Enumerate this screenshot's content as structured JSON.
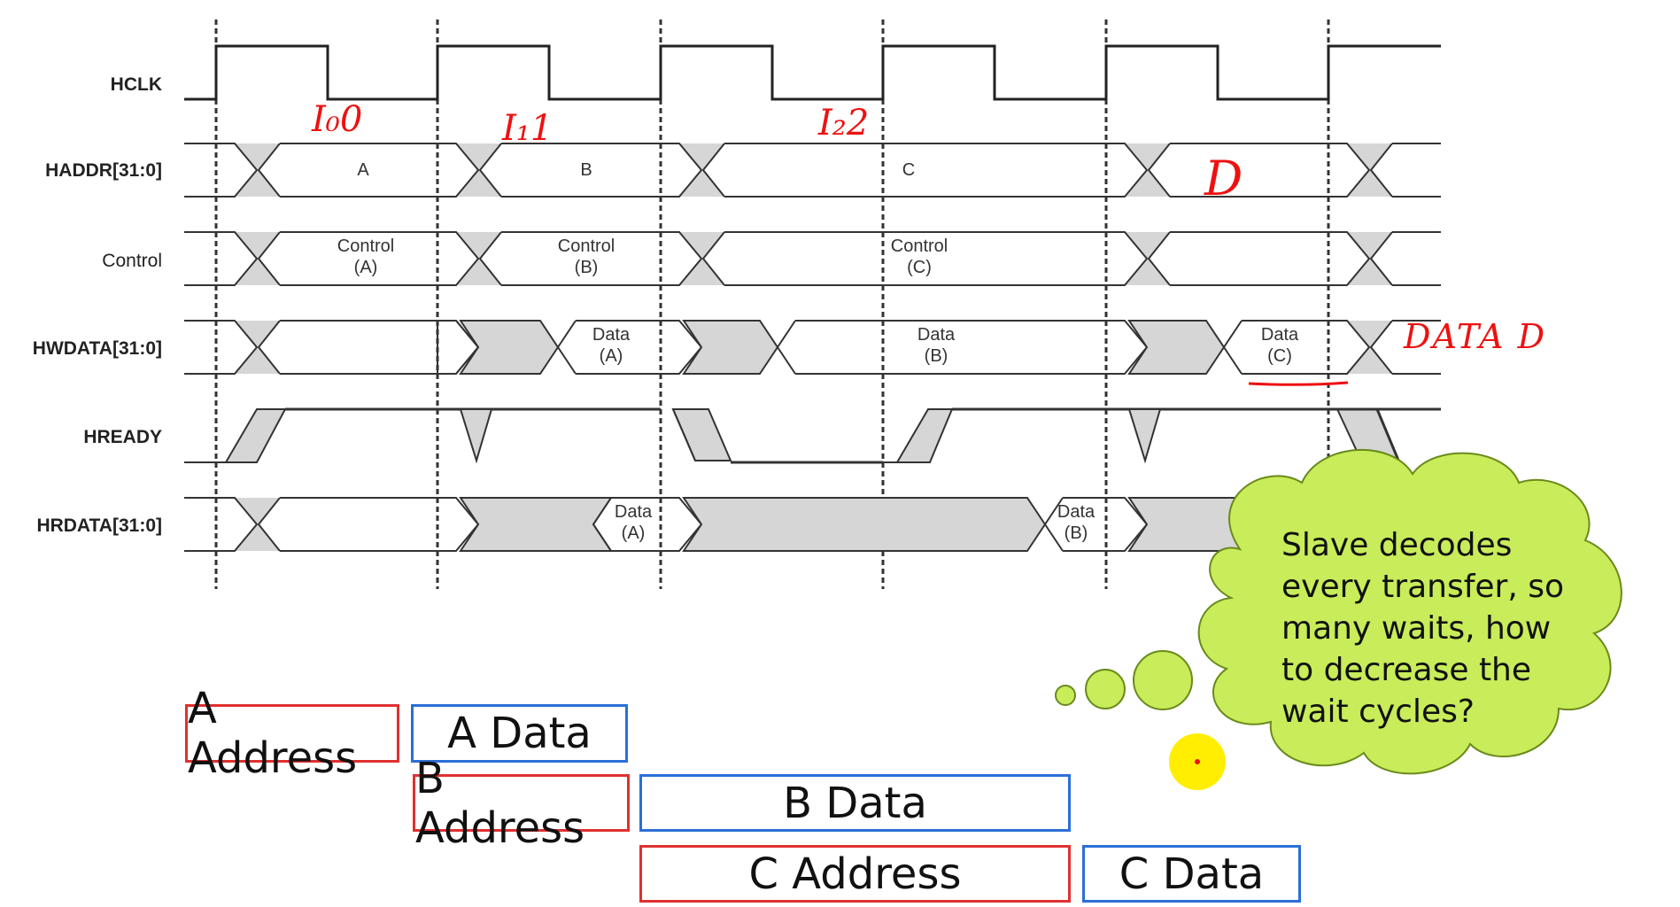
{
  "signals": {
    "hclk": "HCLK",
    "haddr": "HADDR[31:0]",
    "control": "Control",
    "hwdata": "HWDATA[31:0]",
    "hready": "HREADY",
    "hrdata": "HRDATA[31:0]"
  },
  "bus_values": {
    "haddr_a": "A",
    "haddr_b": "B",
    "haddr_c": "C",
    "control_a_1": "Control",
    "control_a_2": "(A)",
    "control_b_1": "Control",
    "control_b_2": "(B)",
    "control_c_1": "Control",
    "control_c_2": "(C)",
    "hwdata_a_1": "Data",
    "hwdata_a_2": "(A)",
    "hwdata_b_1": "Data",
    "hwdata_b_2": "(B)",
    "hwdata_c_1": "Data",
    "hwdata_c_2": "(C)",
    "hrdata_a_1": "Data",
    "hrdata_a_2": "(A)",
    "hrdata_b_1": "Data",
    "hrdata_b_2": "(B)"
  },
  "handwritten": {
    "t0": "I₀0",
    "t1": "I₁1",
    "t2": "I₂2",
    "d": "D",
    "data_d": "DATA D"
  },
  "pipeline_boxes": {
    "a_address": "A Address",
    "a_data": "A Data",
    "b_address": "B Address",
    "b_data": "B Data",
    "c_address": "C Address",
    "c_data": "C Data"
  },
  "thought": {
    "text": "Slave decodes every transfer, so many waits, how to decrease the wait cycles?"
  },
  "colors": {
    "address_border": "#e03030",
    "data_border": "#2a6fd6",
    "cloud_fill": "#c8ec5a",
    "cursor": "#ffee00",
    "annotation": "#ee1111"
  }
}
